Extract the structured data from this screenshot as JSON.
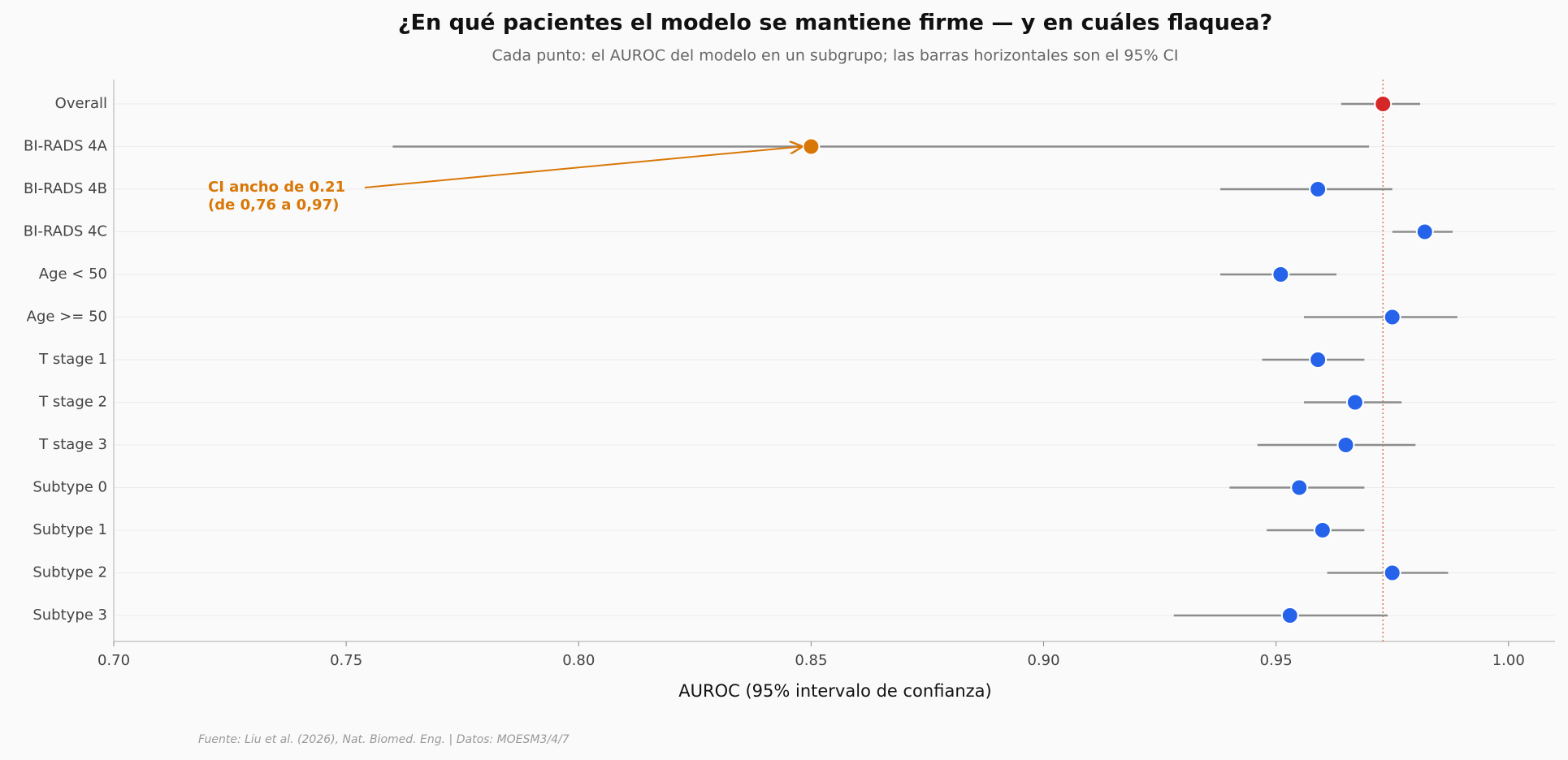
{
  "chart_data": {
    "type": "forest",
    "title": "¿En qué pacientes el modelo se mantiene firme — y en cuáles flaquea?",
    "subtitle": "Cada punto: el AUROC del modelo en un subgrupo; las barras horizontales son el 95% CI",
    "x_label": "AUROC (95% intervalo de confianza)",
    "categories": [
      "Overall",
      "BI-RADS 4A",
      "BI-RADS 4B",
      "BI-RADS 4C",
      "Age < 50",
      "Age >= 50",
      "T stage 1",
      "T stage 2",
      "T stage 3",
      "Subtype 0",
      "Subtype 1",
      "Subtype 2",
      "Subtype 3"
    ],
    "values": [
      0.973,
      0.85,
      0.959,
      0.982,
      0.951,
      0.975,
      0.959,
      0.967,
      0.965,
      0.955,
      0.96,
      0.975,
      0.953
    ],
    "ci_low": [
      0.964,
      0.76,
      0.938,
      0.975,
      0.938,
      0.956,
      0.947,
      0.956,
      0.946,
      0.94,
      0.948,
      0.961,
      0.928
    ],
    "ci_high": [
      0.981,
      0.97,
      0.975,
      0.988,
      0.963,
      0.989,
      0.969,
      0.977,
      0.98,
      0.969,
      0.969,
      0.987,
      0.974
    ],
    "colors": [
      "#d62728",
      "#d97706",
      "#2563eb",
      "#2563eb",
      "#2563eb",
      "#2563eb",
      "#2563eb",
      "#2563eb",
      "#2563eb",
      "#2563eb",
      "#2563eb",
      "#2563eb",
      "#2563eb"
    ],
    "xlim": [
      0.7,
      1.01
    ],
    "xticks": [
      {
        "value": 0.7,
        "label": "0.70"
      },
      0.75,
      {
        "value": 0.8,
        "label": "0.80"
      },
      0.85,
      {
        "value": 0.9,
        "label": "0.90"
      },
      0.95,
      {
        "value": 1.0,
        "label": "1.00"
      }
    ],
    "annotation": [
      "CI ancho de 0.21",
      "(de 0,76 a 0,97)"
    ],
    "source": "Fuente: Liu et al. (2026), Nat. Biomed. Eng. | Datos: MOESM3/4/7"
  }
}
